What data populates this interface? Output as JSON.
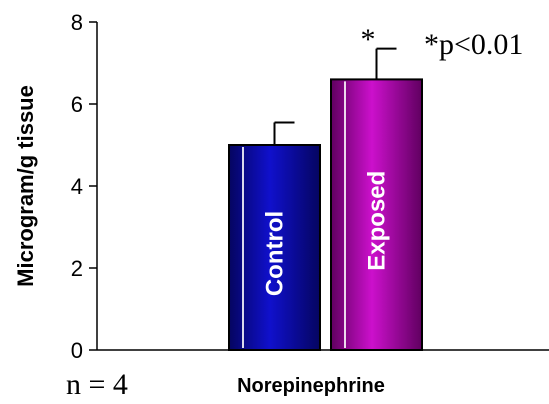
{
  "chart_data": {
    "type": "bar",
    "ylabel": "Microgram/g tissue",
    "xlabel": "Norepinephrine",
    "ylim": [
      0,
      8
    ],
    "yticks": [
      0,
      2,
      4,
      6,
      8
    ],
    "grid": false,
    "series": [
      {
        "name": "Control",
        "value": 5.0,
        "error": 0.55,
        "color": "#1010cc",
        "color_dark": "#050560"
      },
      {
        "name": "Exposed",
        "value": 6.6,
        "error": 0.75,
        "color": "#cc10cc",
        "color_dark": "#600060"
      }
    ],
    "significance_marker": "*",
    "annotation": "*p<0.01",
    "sample_size": "n = 4"
  }
}
